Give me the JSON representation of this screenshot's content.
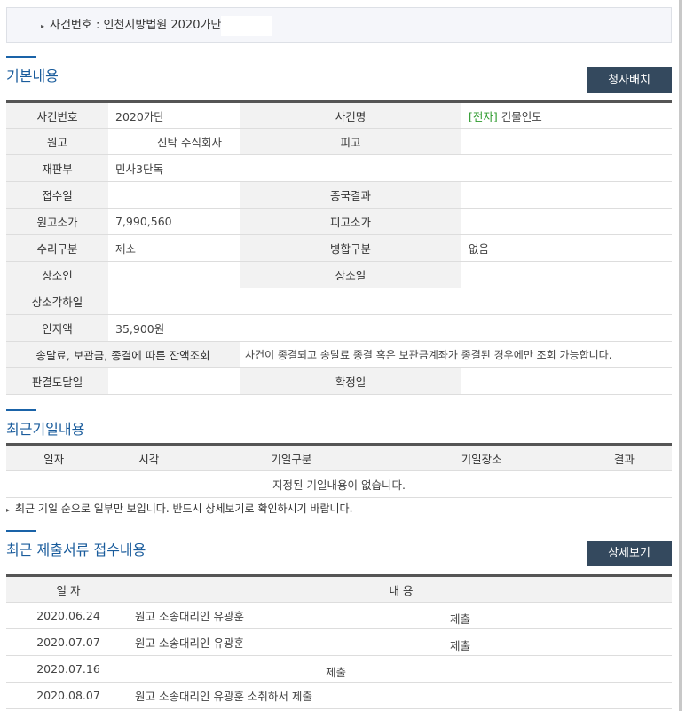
{
  "case_header": {
    "text": "사건번호 : 인천지방법원 2020가단"
  },
  "basic": {
    "title": "기본내용",
    "button": "청사배치",
    "rows": [
      {
        "l1": "사건번호",
        "v1": "2020가단",
        "l2": "사건명",
        "v2_tag": "[전자]",
        "v2": "건물인도"
      },
      {
        "l1": "원고",
        "v1": "신탁 주식회사",
        "l2": "피고",
        "v2": ""
      },
      {
        "l1": "재판부",
        "v1": "민사3단독"
      },
      {
        "l1": "접수일",
        "v1": "",
        "l2": "종국결과",
        "v2": ""
      },
      {
        "l1": "원고소가",
        "v1": "7,990,560",
        "l2": "피고소가",
        "v2": ""
      },
      {
        "l1": "수리구분",
        "v1": "제소",
        "l2": "병합구분",
        "v2": "없음"
      },
      {
        "l1": "상소인",
        "v1": "",
        "l2": "상소일",
        "v2": ""
      },
      {
        "l1": "상소각하일",
        "v1": ""
      },
      {
        "l1": "인지액",
        "v1": "35,900원"
      },
      {
        "l1": "송달료, 보관금, 종결에 따른 잔액조회",
        "v1": "사건이 종결되고 송달료 종결 혹은 보관금계좌가 종결된 경우에만 조회 가능합니다."
      },
      {
        "l1": "판결도달일",
        "v1": "",
        "l2": "확정일",
        "v2": ""
      }
    ]
  },
  "hearings": {
    "title": "최근기일내용",
    "columns": [
      "일자",
      "시각",
      "기일구분",
      "기일장소",
      "결과"
    ],
    "empty": "지정된 기일내용이 없습니다.",
    "note": "최근 기일 순으로 일부만 보입니다. 반드시 상세보기로 확인하시기 바랍니다."
  },
  "filings": {
    "title": "최근 제출서류 접수내용",
    "button": "상세보기",
    "columns": [
      "일 자",
      "내 용"
    ],
    "rows": [
      {
        "date": "2020.06.24",
        "a": "원고 소송대리인 유광훈",
        "b": "제출"
      },
      {
        "date": "2020.07.07",
        "a": "원고 소송대리인 유광훈",
        "b": "제출"
      },
      {
        "date": "2020.07.16",
        "a": "",
        "b": "제출"
      },
      {
        "date": "2020.08.07",
        "a": "원고 소송대리인 유광훈 소취하서 제출",
        "b": ""
      }
    ]
  },
  "colors": {
    "accent": "#1a5c9c",
    "button": "#34495e",
    "tag": "#2e9a2e"
  }
}
